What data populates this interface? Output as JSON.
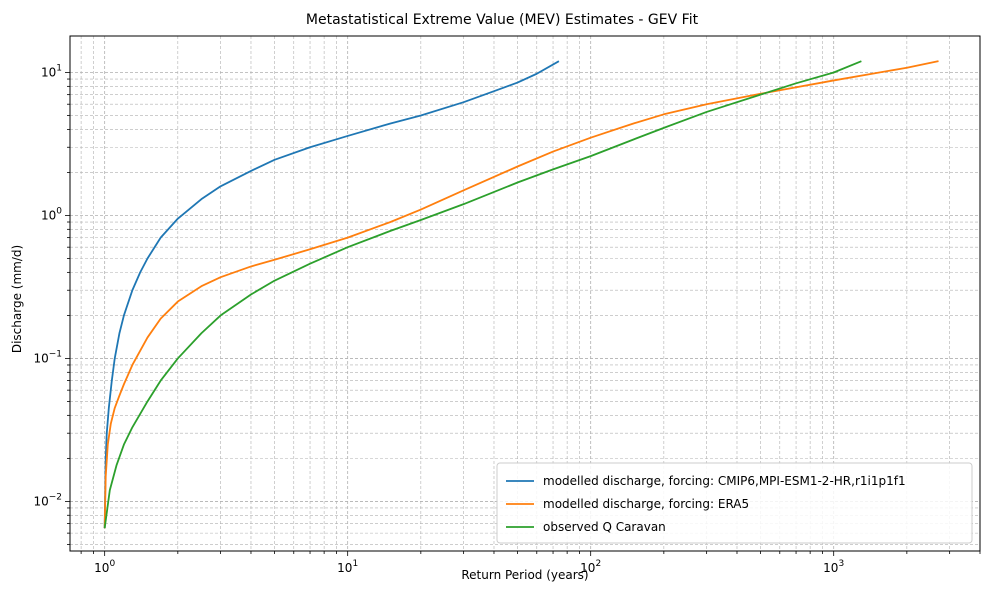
{
  "chart_data": {
    "type": "line",
    "title": "Metastatistical Extreme Value (MEV) Estimates - GEV Fit",
    "xlabel": "Return Period (years)",
    "ylabel": "Discharge (mm/d)",
    "xscale": "log",
    "yscale": "log",
    "xlim": [
      0.72,
      4000
    ],
    "ylim": [
      0.0045,
      18
    ],
    "grid": true,
    "legend_position": "lower-right",
    "x_tick_labels": [
      {
        "value": 1,
        "mantissa": "10",
        "exp": "0"
      },
      {
        "value": 10,
        "mantissa": "10",
        "exp": "1"
      },
      {
        "value": 100,
        "mantissa": "10",
        "exp": "2"
      },
      {
        "value": 1000,
        "mantissa": "10",
        "exp": "3"
      }
    ],
    "y_tick_labels": [
      {
        "value": 0.01,
        "mantissa": "10",
        "exp": "−2"
      },
      {
        "value": 0.1,
        "mantissa": "10",
        "exp": "−1"
      },
      {
        "value": 1,
        "mantissa": "10",
        "exp": "0"
      },
      {
        "value": 10,
        "mantissa": "10",
        "exp": "1"
      }
    ],
    "series": [
      {
        "name": "modelled discharge, forcing: CMIP6,MPI-ESM1-2-HR,r1i1p1f1",
        "color": "#1f77b4",
        "x": [
          1.0,
          1.005,
          1.01,
          1.02,
          1.04,
          1.07,
          1.1,
          1.15,
          1.2,
          1.3,
          1.4,
          1.5,
          1.7,
          2.0,
          2.5,
          3.0,
          4.0,
          5.0,
          7.0,
          10.0,
          15.0,
          20.0,
          30.0,
          40.0,
          50.0,
          60.0,
          74.0
        ],
        "y": [
          0.0065,
          0.012,
          0.02,
          0.03,
          0.045,
          0.07,
          0.1,
          0.15,
          0.2,
          0.3,
          0.4,
          0.5,
          0.7,
          0.95,
          1.3,
          1.6,
          2.05,
          2.45,
          3.0,
          3.6,
          4.4,
          5.0,
          6.2,
          7.4,
          8.5,
          9.8,
          12.0
        ]
      },
      {
        "name": "modelled discharge, forcing: ERA5",
        "color": "#ff7f0e",
        "x": [
          1.0,
          1.01,
          1.03,
          1.06,
          1.1,
          1.15,
          1.2,
          1.3,
          1.5,
          1.7,
          2.0,
          2.5,
          3.0,
          4.0,
          5.0,
          7.0,
          10.0,
          15.0,
          20.0,
          30.0,
          50.0,
          70.0,
          100.0,
          150.0,
          200.0,
          300.0,
          500.0,
          1000.0,
          2000.0,
          2700.0
        ],
        "y": [
          0.0065,
          0.015,
          0.025,
          0.035,
          0.045,
          0.055,
          0.066,
          0.09,
          0.14,
          0.19,
          0.25,
          0.32,
          0.37,
          0.44,
          0.49,
          0.58,
          0.7,
          0.9,
          1.1,
          1.5,
          2.2,
          2.8,
          3.5,
          4.4,
          5.1,
          6.0,
          7.1,
          8.8,
          10.8,
          12.0
        ]
      },
      {
        "name": "observed Q Caravan",
        "color": "#2ca02c",
        "x": [
          1.0,
          1.05,
          1.12,
          1.2,
          1.3,
          1.5,
          1.7,
          2.0,
          2.5,
          3.0,
          4.0,
          5.0,
          7.0,
          10.0,
          15.0,
          20.0,
          30.0,
          50.0,
          70.0,
          100.0,
          150.0,
          200.0,
          300.0,
          500.0,
          700.0,
          1000.0,
          1300.0
        ],
        "y": [
          0.0065,
          0.012,
          0.018,
          0.025,
          0.033,
          0.05,
          0.07,
          0.1,
          0.15,
          0.2,
          0.28,
          0.35,
          0.46,
          0.6,
          0.78,
          0.93,
          1.2,
          1.7,
          2.1,
          2.6,
          3.4,
          4.1,
          5.3,
          7.0,
          8.4,
          10.0,
          12.0
        ]
      }
    ]
  }
}
